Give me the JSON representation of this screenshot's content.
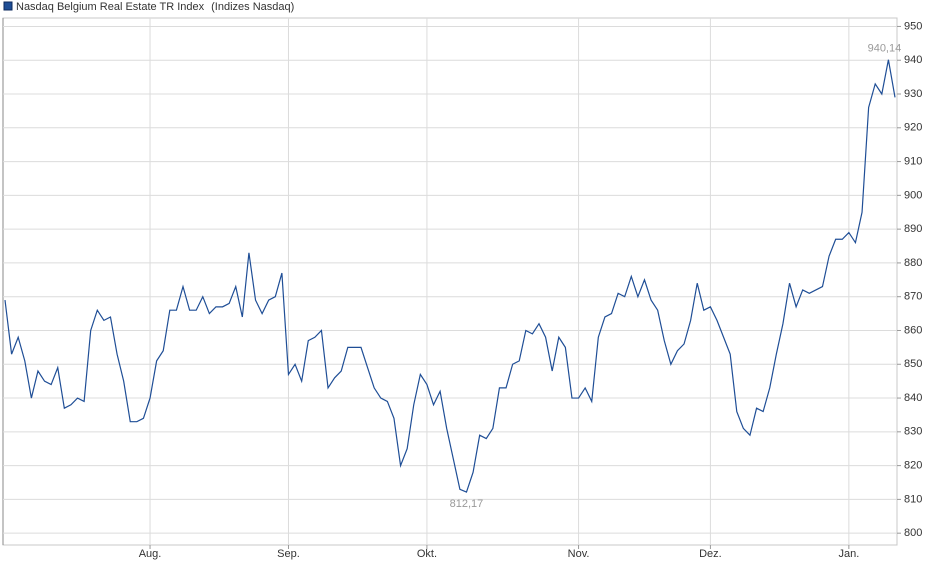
{
  "chart_data": {
    "type": "line",
    "title": "Nasdaq Belgium Real Estate TR Index",
    "subtitle": "(Indizes Nasdaq)",
    "categories": [
      null,
      null,
      null,
      null,
      null,
      null,
      null,
      null,
      null,
      null,
      null,
      null,
      null,
      null,
      null,
      null,
      null,
      null,
      null,
      null,
      null,
      null,
      "Aug.",
      null,
      null,
      null,
      null,
      null,
      null,
      null,
      null,
      null,
      null,
      null,
      null,
      null,
      null,
      null,
      null,
      null,
      null,
      null,
      null,
      "Sep.",
      null,
      null,
      null,
      null,
      null,
      null,
      null,
      null,
      null,
      null,
      null,
      null,
      null,
      null,
      null,
      null,
      null,
      null,
      null,
      null,
      "Okt.",
      null,
      null,
      null,
      null,
      null,
      null,
      null,
      null,
      null,
      null,
      null,
      null,
      null,
      null,
      null,
      null,
      null,
      null,
      null,
      null,
      null,
      null,
      "Nov.",
      null,
      null,
      null,
      null,
      null,
      null,
      null,
      null,
      null,
      null,
      null,
      null,
      null,
      null,
      null,
      null,
      null,
      null,
      null,
      "Dez.",
      null,
      null,
      null,
      null,
      null,
      null,
      null,
      null,
      null,
      null,
      null,
      null,
      null,
      null,
      null,
      null,
      null,
      null,
      null,
      null,
      "Jan.",
      null,
      null,
      null,
      null,
      null,
      null,
      null
    ],
    "series": [
      {
        "name": "Nasdaq Belgium Real Estate TR Index",
        "color": "#1f4e96",
        "values": [
          869,
          853,
          858,
          851,
          840,
          848,
          845,
          844,
          849,
          837,
          838,
          840,
          839,
          860,
          866,
          863,
          864,
          853,
          845,
          833,
          833,
          834,
          840,
          851,
          854,
          866,
          866,
          873,
          866,
          866,
          870,
          865,
          867,
          867,
          868,
          873,
          864,
          883,
          869,
          865,
          869,
          870,
          877,
          847,
          850,
          845,
          857,
          858,
          860,
          843,
          846,
          848,
          855,
          855,
          855,
          849,
          843,
          840,
          839,
          834,
          820,
          825,
          838,
          847,
          844,
          838,
          842,
          831,
          822,
          813,
          812.17,
          818,
          829,
          828,
          831,
          843,
          843,
          850,
          851,
          860,
          859,
          862,
          858,
          848,
          858,
          855,
          840,
          840,
          843,
          839,
          858,
          864,
          865,
          871,
          870,
          876,
          870,
          875,
          869,
          866,
          857,
          850,
          854,
          856,
          863,
          874,
          866,
          867,
          863,
          858,
          853,
          836,
          831,
          829,
          837,
          836,
          843,
          853,
          862,
          874,
          867,
          872,
          871,
          872,
          873,
          882,
          887,
          887,
          889,
          886,
          895,
          926,
          933,
          930,
          940.14,
          929
        ],
        "value_labels": [
          null,
          null,
          null,
          null,
          null,
          null,
          null,
          null,
          null,
          null,
          null,
          null,
          null,
          null,
          null,
          null,
          null,
          null,
          null,
          null,
          null,
          null,
          null,
          null,
          null,
          null,
          null,
          null,
          null,
          null,
          null,
          null,
          null,
          null,
          null,
          null,
          null,
          null,
          null,
          null,
          null,
          null,
          null,
          null,
          null,
          null,
          null,
          null,
          null,
          null,
          null,
          null,
          null,
          null,
          null,
          null,
          null,
          null,
          null,
          null,
          null,
          null,
          null,
          null,
          null,
          null,
          null,
          null,
          null,
          null,
          "812,17",
          null,
          null,
          null,
          null,
          null,
          null,
          null,
          null,
          null,
          null,
          null,
          null,
          null,
          null,
          null,
          null,
          null,
          null,
          null,
          null,
          null,
          null,
          null,
          null,
          null,
          null,
          null,
          null,
          null,
          null,
          null,
          null,
          null,
          null,
          null,
          null,
          null,
          null,
          null,
          null,
          null,
          null,
          null,
          null,
          null,
          null,
          null,
          null,
          null,
          null,
          null,
          null,
          null,
          null,
          null,
          null,
          null,
          null,
          null,
          null,
          null,
          null,
          null,
          "940,14",
          null
        ]
      }
    ],
    "ylim": [
      796.5,
      952.5
    ],
    "yticks": [
      800,
      810,
      820,
      830,
      840,
      850,
      860,
      870,
      880,
      890,
      900,
      910,
      920,
      930,
      940,
      950
    ],
    "grid": true
  }
}
